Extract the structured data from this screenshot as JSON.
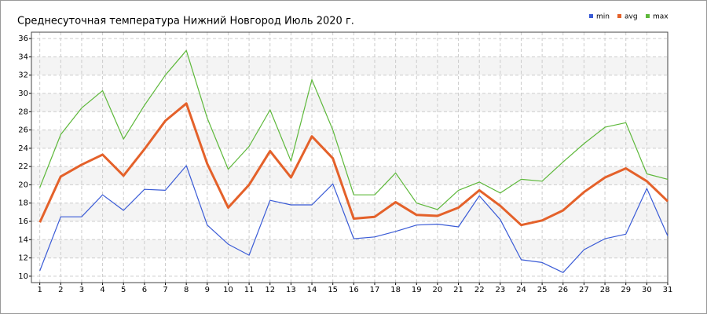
{
  "chart_data": {
    "type": "line",
    "title": "Среднесуточная температура Нижний Новгород  Июль 2020 г.",
    "x": [
      1,
      2,
      3,
      4,
      5,
      6,
      7,
      8,
      9,
      10,
      11,
      12,
      13,
      14,
      15,
      16,
      17,
      18,
      19,
      20,
      21,
      22,
      23,
      24,
      25,
      26,
      27,
      28,
      29,
      30,
      31
    ],
    "series": [
      {
        "name": "min",
        "color": "#3a5bd6",
        "values": [
          10.6,
          16.5,
          16.5,
          18.9,
          17.2,
          19.5,
          19.4,
          22.1,
          15.6,
          13.5,
          12.3,
          18.3,
          17.8,
          17.8,
          20.1,
          14.1,
          14.3,
          14.9,
          15.6,
          15.7,
          15.4,
          18.8,
          16.2,
          11.8,
          11.5,
          10.4,
          12.9,
          14.1,
          14.6,
          19.6,
          14.4
        ]
      },
      {
        "name": "avg",
        "color": "#e4612a",
        "values": [
          15.9,
          20.9,
          22.2,
          23.3,
          21.0,
          23.9,
          27.0,
          28.9,
          22.3,
          17.5,
          20.0,
          23.7,
          20.8,
          25.3,
          22.9,
          16.3,
          16.5,
          18.1,
          16.7,
          16.6,
          17.5,
          19.4,
          17.7,
          15.6,
          16.1,
          17.2,
          19.2,
          20.8,
          21.8,
          20.4,
          18.2
        ]
      },
      {
        "name": "max",
        "color": "#5db83a",
        "values": [
          19.7,
          25.5,
          28.4,
          30.3,
          25.0,
          28.7,
          32.0,
          34.7,
          27.3,
          21.7,
          24.2,
          28.2,
          22.6,
          31.5,
          26.0,
          18.9,
          18.9,
          21.3,
          18.0,
          17.3,
          19.4,
          20.3,
          19.1,
          20.6,
          20.4,
          22.5,
          24.5,
          26.3,
          26.8,
          21.2,
          20.6
        ]
      }
    ],
    "xlim": [
      0.6,
      31
    ],
    "xticks": [
      1,
      2,
      3,
      4,
      5,
      6,
      7,
      8,
      9,
      10,
      11,
      12,
      13,
      14,
      15,
      16,
      17,
      18,
      19,
      20,
      21,
      22,
      23,
      24,
      25,
      26,
      27,
      28,
      29,
      30,
      31
    ],
    "ylim": [
      9.3,
      36.7
    ],
    "yticks": [
      10,
      12,
      14,
      16,
      18,
      20,
      22,
      24,
      26,
      28,
      30,
      32,
      34,
      36
    ],
    "grid": true,
    "legend": "top-right"
  }
}
